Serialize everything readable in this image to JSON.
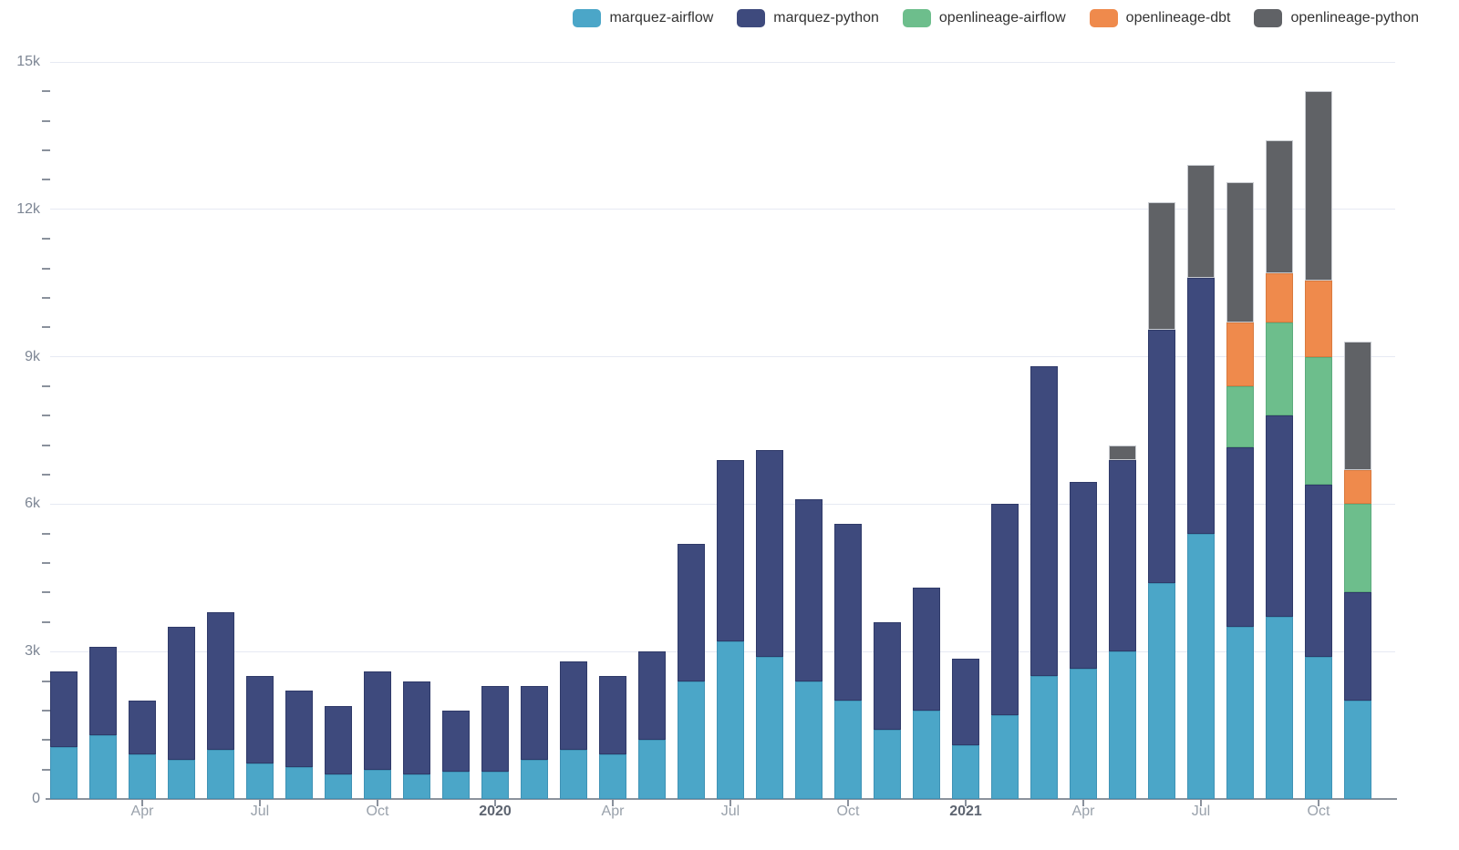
{
  "legend": {
    "items": [
      {
        "label": "marquez-airflow",
        "color": "#4ba6c8"
      },
      {
        "label": "marquez-python",
        "color": "#3e4a7d"
      },
      {
        "label": "openlineage-airflow",
        "color": "#6dbe8c"
      },
      {
        "label": "openlineage-dbt",
        "color": "#ef8a4c"
      },
      {
        "label": "openlineage-python",
        "color": "#606266"
      }
    ]
  },
  "chart_data": {
    "type": "bar",
    "stacked": true,
    "title": "",
    "xlabel": "",
    "ylabel": "",
    "grid": true,
    "legend_position": "top-right",
    "categories": [
      "2019-02",
      "2019-03",
      "2019-04",
      "2019-05",
      "2019-06",
      "2019-07",
      "2019-08",
      "2019-09",
      "2019-10",
      "2019-11",
      "2019-12",
      "2020-01",
      "2020-02",
      "2020-03",
      "2020-04",
      "2020-05",
      "2020-06",
      "2020-07",
      "2020-08",
      "2020-09",
      "2020-10",
      "2020-11",
      "2020-12",
      "2021-01",
      "2021-02",
      "2021-03",
      "2021-04",
      "2021-05",
      "2021-06",
      "2021-07",
      "2021-08",
      "2021-09",
      "2021-10",
      "2021-11"
    ],
    "series": [
      {
        "name": "marquez-airflow",
        "color": "#4ba6c8",
        "border": "#3f92b5",
        "values": [
          1050,
          1300,
          900,
          800,
          1000,
          720,
          650,
          500,
          600,
          500,
          550,
          550,
          800,
          1000,
          900,
          1200,
          2400,
          3200,
          2900,
          2400,
          2000,
          1400,
          1800,
          1100,
          1700,
          2500,
          2650,
          3000,
          4400,
          5400,
          3500,
          3700,
          2900,
          2000
        ]
      },
      {
        "name": "marquez-python",
        "color": "#3e4a7d",
        "border": "#2f3a69",
        "values": [
          1550,
          1800,
          1100,
          2700,
          2800,
          1780,
          1550,
          1400,
          2000,
          1900,
          1250,
          1750,
          1500,
          1800,
          1600,
          1800,
          2800,
          3700,
          4200,
          3700,
          3600,
          2200,
          2500,
          1750,
          4300,
          6300,
          3800,
          3900,
          5150,
          5200,
          3650,
          4100,
          3500,
          2200
        ]
      },
      {
        "name": "openlineage-airflow",
        "color": "#6dbe8c",
        "border": "#5cab7d",
        "values": [
          0,
          0,
          0,
          0,
          0,
          0,
          0,
          0,
          0,
          0,
          0,
          0,
          0,
          0,
          0,
          0,
          0,
          0,
          0,
          0,
          0,
          0,
          0,
          0,
          0,
          0,
          0,
          0,
          0,
          0,
          1250,
          1900,
          2600,
          1800
        ]
      },
      {
        "name": "openlineage-dbt",
        "color": "#ef8a4c",
        "border": "#d97a3e",
        "values": [
          0,
          0,
          0,
          0,
          0,
          0,
          0,
          0,
          0,
          0,
          0,
          0,
          0,
          0,
          0,
          0,
          0,
          0,
          0,
          0,
          0,
          0,
          0,
          0,
          0,
          0,
          0,
          0,
          0,
          0,
          1300,
          1000,
          1550,
          700
        ]
      },
      {
        "name": "openlineage-python",
        "color": "#606266",
        "border": "#c8cbd0",
        "values": [
          0,
          0,
          0,
          0,
          0,
          0,
          0,
          0,
          0,
          0,
          0,
          0,
          0,
          0,
          0,
          0,
          0,
          0,
          0,
          0,
          0,
          0,
          0,
          0,
          0,
          0,
          0,
          300,
          2600,
          2300,
          2850,
          2700,
          3850,
          2600
        ]
      }
    ],
    "ylim": [
      0,
      15000
    ],
    "y_axis": {
      "tick_values": [
        0,
        3000,
        6000,
        9000,
        12000,
        15000
      ],
      "tick_labels": [
        "0",
        "3k",
        "6k",
        "9k",
        "12k",
        "15k"
      ],
      "minor_interval": 600
    },
    "x_axis": {
      "ticks": [
        {
          "category_index": 2,
          "label": "Apr",
          "bold": false
        },
        {
          "category_index": 5,
          "label": "Jul",
          "bold": false
        },
        {
          "category_index": 8,
          "label": "Oct",
          "bold": false
        },
        {
          "category_index": 11,
          "label": "2020",
          "bold": true
        },
        {
          "category_index": 14,
          "label": "Apr",
          "bold": false
        },
        {
          "category_index": 17,
          "label": "Jul",
          "bold": false
        },
        {
          "category_index": 20,
          "label": "Oct",
          "bold": false
        },
        {
          "category_index": 23,
          "label": "2021",
          "bold": true
        },
        {
          "category_index": 26,
          "label": "Apr",
          "bold": false
        },
        {
          "category_index": 29,
          "label": "Jul",
          "bold": false
        },
        {
          "category_index": 32,
          "label": "Oct",
          "bold": false
        }
      ]
    }
  },
  "colors": {
    "background": "#ffffff",
    "gridline": "#e6eaf3",
    "axis_line": "#8b929c",
    "tick": "#8a919c",
    "y_label": "#7d8694",
    "x_label": "#99a1ab",
    "x_label_bold": "#5d6470",
    "legend_text": "#333333"
  }
}
